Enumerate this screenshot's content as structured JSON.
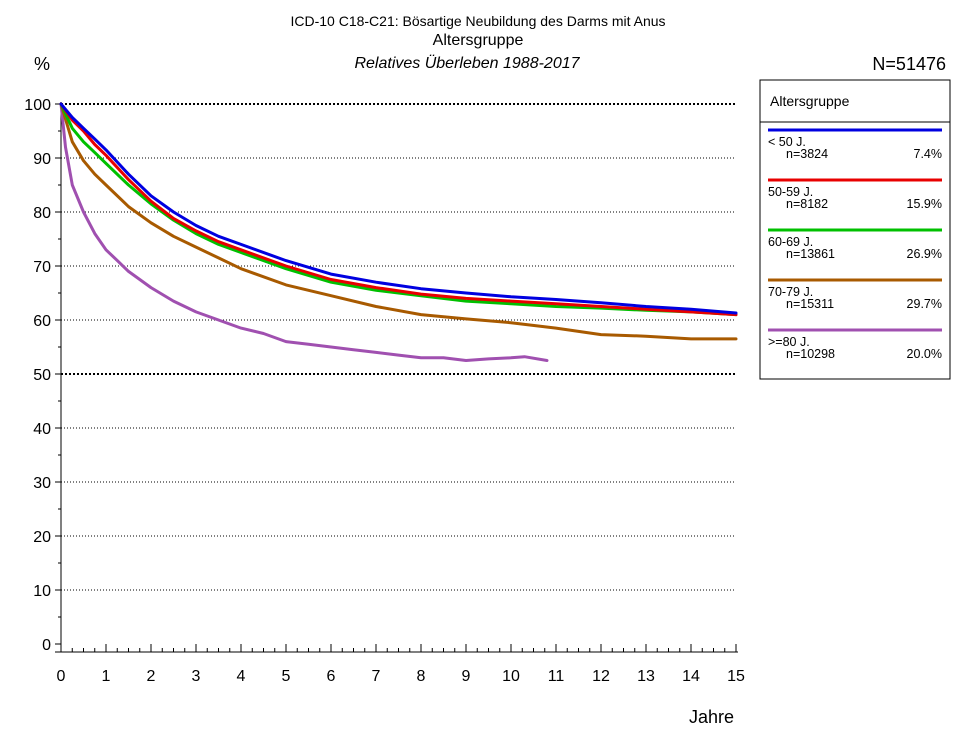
{
  "header": {
    "line1": "ICD-10 C18-C21: Bösartige Neubildung des Darms mit Anus",
    "line2": "Altersgruppe",
    "line3": "Relatives Überleben 1988-2017",
    "y_unit": "%",
    "total_n": "N=51476"
  },
  "legend": {
    "title": "Altersgruppe",
    "entries": [
      {
        "label": "< 50 J.",
        "n": "n=3824",
        "pct": "7.4%",
        "color": "#0000e0"
      },
      {
        "label": "50-59 J.",
        "n": "n=8182",
        "pct": "15.9%",
        "color": "#e80000"
      },
      {
        "label": "60-69 J.",
        "n": "n=13861",
        "pct": "26.9%",
        "color": "#00c000"
      },
      {
        "label": "70-79 J.",
        "n": "n=15311",
        "pct": "29.7%",
        "color": "#a85a00"
      },
      {
        "label": ">=80 J.",
        "n": "n=10298",
        "pct": "20.0%",
        "color": "#a050b0"
      }
    ]
  },
  "chart_data": {
    "type": "line",
    "title": "ICD-10 C18-C21: Bösartige Neubildung des Darms mit Anus",
    "subtitle": "Altersgruppe",
    "xlabel": "Jahre",
    "ylabel": "%",
    "xlim": [
      0,
      15
    ],
    "ylim": [
      0,
      100
    ],
    "xticks": [
      "0",
      "1",
      "2",
      "3",
      "4",
      "5",
      "6",
      "7",
      "8",
      "9",
      "10",
      "11",
      "12",
      "13",
      "14",
      "15"
    ],
    "yticks": [
      "0",
      "10",
      "20",
      "30",
      "40",
      "50",
      "60",
      "70",
      "80",
      "90",
      "100"
    ],
    "grid": "horizontal dotted",
    "legend_position": "right",
    "series": [
      {
        "name": "< 50 J.",
        "color": "#0000e0",
        "x": [
          0,
          0.25,
          0.5,
          0.75,
          1,
          1.5,
          2,
          2.5,
          3,
          3.5,
          4,
          5,
          6,
          7,
          8,
          9,
          10,
          11,
          12,
          13,
          14,
          15
        ],
        "y": [
          100,
          97.5,
          95.5,
          93.5,
          91.5,
          87,
          83,
          80,
          77.5,
          75.5,
          74,
          71,
          68.5,
          67,
          65.8,
          65,
          64.3,
          63.8,
          63.2,
          62.5,
          62,
          61.3
        ]
      },
      {
        "name": "50-59 J.",
        "color": "#e80000",
        "x": [
          0,
          0.25,
          0.5,
          0.75,
          1,
          1.5,
          2,
          2.5,
          3,
          3.5,
          4,
          5,
          6,
          7,
          8,
          9,
          10,
          11,
          12,
          13,
          14,
          15
        ],
        "y": [
          100,
          97,
          95,
          92.5,
          90.5,
          86,
          82,
          78.8,
          76.5,
          74.5,
          73,
          70,
          67.5,
          66,
          64.8,
          64,
          63.5,
          63,
          62.5,
          62,
          61.5,
          61
        ]
      },
      {
        "name": "60-69 J.",
        "color": "#00c000",
        "x": [
          0,
          0.25,
          0.5,
          0.75,
          1,
          1.5,
          2,
          2.5,
          3,
          3.5,
          4,
          5,
          6,
          7,
          8,
          9,
          10,
          11,
          12,
          13,
          14,
          15
        ],
        "y": [
          100,
          95.5,
          93,
          91,
          89,
          85,
          81.5,
          78.5,
          76,
          74,
          72.5,
          69.5,
          67,
          65.5,
          64.5,
          63.5,
          63,
          62.5,
          62.2,
          61.8,
          61.5,
          61
        ]
      },
      {
        "name": "70-79 J.",
        "color": "#a85a00",
        "x": [
          0,
          0.25,
          0.5,
          0.75,
          1,
          1.5,
          2,
          2.5,
          3,
          3.5,
          4,
          5,
          6,
          7,
          8,
          9,
          10,
          11,
          12,
          13,
          14,
          15
        ],
        "y": [
          100,
          93,
          89.5,
          87,
          85,
          81,
          78,
          75.5,
          73.5,
          71.5,
          69.5,
          66.5,
          64.5,
          62.5,
          61,
          60.2,
          59.5,
          58.5,
          57.3,
          57,
          56.5,
          56.5
        ]
      },
      {
        "name": ">=80 J.",
        "color": "#a050b0",
        "x": [
          0,
          0.1,
          0.25,
          0.5,
          0.75,
          1,
          1.25,
          1.5,
          2,
          2.5,
          3,
          3.5,
          4,
          4.5,
          5,
          5.5,
          6,
          6.5,
          7,
          7.5,
          8,
          8.5,
          9,
          9.5,
          10,
          10.3,
          10.8
        ],
        "y": [
          100,
          92,
          85,
          80,
          76,
          73,
          71,
          69,
          66,
          63.5,
          61.5,
          60,
          58.5,
          57.5,
          56,
          55.5,
          55,
          54.5,
          54,
          53.5,
          53,
          53,
          52.5,
          52.8,
          53,
          53.2,
          52.5
        ]
      }
    ]
  }
}
